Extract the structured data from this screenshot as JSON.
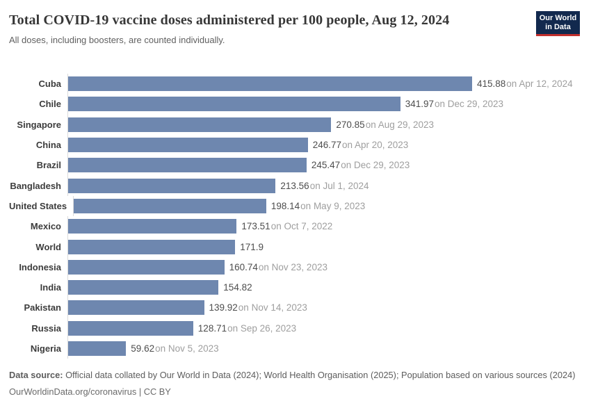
{
  "header": {
    "title": "Total COVID-19 vaccine doses administered per 100 people, Aug 12, 2024",
    "subtitle": "All doses, including boosters, are counted individually.",
    "logo_line1": "Our World",
    "logo_line2": "in Data"
  },
  "chart_data": {
    "type": "bar",
    "orientation": "horizontal",
    "title": "Total COVID-19 vaccine doses administered per 100 people, Aug 12, 2024",
    "xlabel": "",
    "ylabel": "",
    "xlim": [
      0,
      415.88
    ],
    "grid": false,
    "legend": "none",
    "categories": [
      "Cuba",
      "Chile",
      "Singapore",
      "China",
      "Brazil",
      "Bangladesh",
      "United States",
      "Mexico",
      "World",
      "Indonesia",
      "India",
      "Pakistan",
      "Russia",
      "Nigeria"
    ],
    "values": [
      415.88,
      341.97,
      270.85,
      246.77,
      245.47,
      213.56,
      198.14,
      173.51,
      171.9,
      160.74,
      154.82,
      139.92,
      128.71,
      59.62
    ],
    "annotations": [
      "on Apr 12, 2024",
      "on Dec 29, 2023",
      "on Aug 29, 2023",
      "on Apr 20, 2023",
      "on Dec 29, 2023",
      "on Jul 1, 2024",
      "on May 9, 2023",
      "on Oct 7, 2022",
      "",
      "on Nov 23, 2023",
      "",
      "on Nov 14, 2023",
      "on Sep 26, 2023",
      "on Nov 5, 2023"
    ]
  },
  "footer": {
    "source_label": "Data source:",
    "source_text": " Official data collated by Our World in Data (2024); World Health Organisation (2025); Population based on various sources (2024)",
    "link_text": "OurWorldinData.org/coronavirus",
    "separator": " | ",
    "license": "CC BY"
  },
  "colors": {
    "bar": "#6E87AF",
    "axis_line": "#DBDBDB",
    "logo_navy": "#12294E",
    "logo_red": "#C2302D",
    "value_text": "#4D4D4D",
    "date_text": "#9E9E9E"
  }
}
